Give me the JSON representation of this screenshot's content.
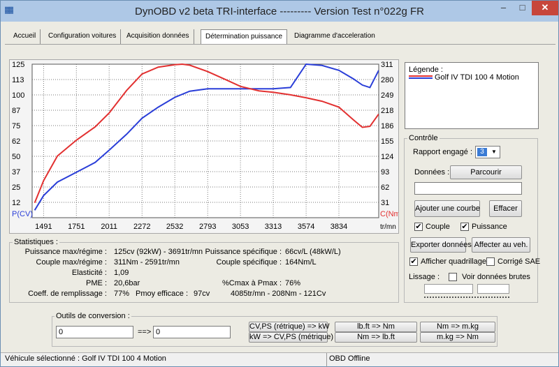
{
  "window": {
    "icon_text": "▓▓",
    "title": "DynOBD v2 beta TRI-interface --------- Version Test n°022g FR",
    "min_glyph": "–",
    "max_glyph": "□",
    "close_glyph": "✕"
  },
  "tabs": [
    "Accueil",
    "Configuration voitures",
    "Acquisition données",
    "Détermination puissance",
    "Diagramme d'acceleration"
  ],
  "chart_data": {
    "type": "line",
    "x_axis": {
      "ticks": [
        "1491",
        "1751",
        "2011",
        "2272",
        "2532",
        "2793",
        "3053",
        "3313",
        "3574",
        "3834"
      ],
      "unit_label": "tr/mn",
      "range": [
        1400,
        4150
      ]
    },
    "left_axis": {
      "label": "P(CV)",
      "ticks": [
        "125",
        "113",
        "100",
        "87",
        "75",
        "62",
        "50",
        "37",
        "25",
        "12"
      ],
      "range": [
        0,
        125
      ],
      "color": "#2a3ed8"
    },
    "right_axis": {
      "label": "C(Nm)",
      "ticks": [
        "311",
        "280",
        "249",
        "218",
        "186",
        "155",
        "124",
        "93",
        "62",
        "31"
      ],
      "range": [
        0,
        311
      ],
      "color": "#e23030"
    },
    "grid": true,
    "series": [
      {
        "name": "Puissance",
        "color": "#2a3ed8",
        "axis": "left",
        "x": [
          1420,
          1491,
          1600,
          1751,
          1900,
          2011,
          2150,
          2272,
          2400,
          2532,
          2650,
          2793,
          2950,
          3053,
          3200,
          3313,
          3450,
          3574,
          3700,
          3834,
          3950,
          4020,
          4080,
          4150
        ],
        "y": [
          6,
          18,
          29,
          37,
          45,
          55,
          68,
          81,
          90,
          98,
          103,
          105,
          105,
          105,
          105,
          105,
          106,
          125,
          124,
          120,
          113,
          108,
          106,
          120
        ]
      },
      {
        "name": "Couple",
        "color": "#e23030",
        "axis": "right",
        "x": [
          1420,
          1491,
          1600,
          1751,
          1900,
          2011,
          2150,
          2272,
          2400,
          2532,
          2591,
          2650,
          2793,
          2950,
          3053,
          3200,
          3313,
          3450,
          3574,
          3700,
          3834,
          3950,
          4020,
          4080,
          4150
        ],
        "y": [
          30,
          75,
          125,
          157,
          184,
          212,
          258,
          291,
          305,
          310,
          311,
          309,
          296,
          278,
          266,
          257,
          254,
          249,
          243,
          236,
          224,
          198,
          183,
          185,
          210
        ]
      }
    ]
  },
  "legend": {
    "title": "Légende :",
    "entries": [
      {
        "label": "Golf IV TDI 100 4 Motion",
        "colors": [
          "#e23030",
          "#2a3ed8"
        ]
      }
    ]
  },
  "controle": {
    "title": "Contrôle",
    "rapport_label": "Rapport engagé :",
    "rapport_value": "3",
    "donnees_label": "Données :",
    "parcourir": "Parcourir",
    "file_value": "",
    "ajouter": "Ajouter une courbe",
    "effacer": "Effacer",
    "couple_label": "Couple",
    "puissance_label": "Puissance",
    "couple_checked": "✔",
    "puissance_checked": "✔",
    "exporter": "Exporter données",
    "affecter": "Affecter au veh.",
    "quadrillage_label": "Afficher quadrillage",
    "quadrillage_checked": "✔",
    "sae_label": "Corrigé SAE",
    "lissage_label": "Lissage :",
    "brutes_label": "Voir données brutes"
  },
  "stats": {
    "title": "Statistiques :",
    "pmax_label": "Puissance max/régime :",
    "pmax_value": "125cv (92kW) - 3691tr/mn",
    "cmax_label": "Couple max/régime :",
    "cmax_value": "311Nm - 2591tr/mn",
    "elast_label": "Elasticité :",
    "elast_value": "1,09",
    "pme_label": "PME :",
    "pme_value": "20,6bar",
    "remp_label": "Coeff. de remplissage :",
    "remp_value": "77%",
    "pmoy_label": "Pmoy efficace :",
    "pmoy_value": "97cv",
    "pspec_label": "Puissance spécifique :",
    "pspec_value": "66cv/L (48kW/L)",
    "cspec_label": "Couple spécifique :",
    "cspec_value": "164Nm/L",
    "ratio_label": "%Cmax à Pmax :",
    "ratio_value": "76%",
    "summary": "4085tr/mn - 208Nm - 121Cv"
  },
  "outils": {
    "title": "Outils de conversion :",
    "input_value": "0",
    "arrow": "==>",
    "output_value": "0",
    "btn_cv_kw": "CV,PS (rétrique) => kW",
    "btn_kw_cv": "kW => CV,PS (métrique)",
    "btn_lbft_nm": "lb.ft => Nm",
    "btn_nm_lbft": "Nm => lb.ft",
    "btn_nm_mkg": "Nm => m.kg",
    "btn_mkg_nm": "m.kg => Nm"
  },
  "status": {
    "vehicle": "Véhicule sélectionné : Golf IV TDI 100 4 Motion",
    "obd": "OBD Offline"
  }
}
